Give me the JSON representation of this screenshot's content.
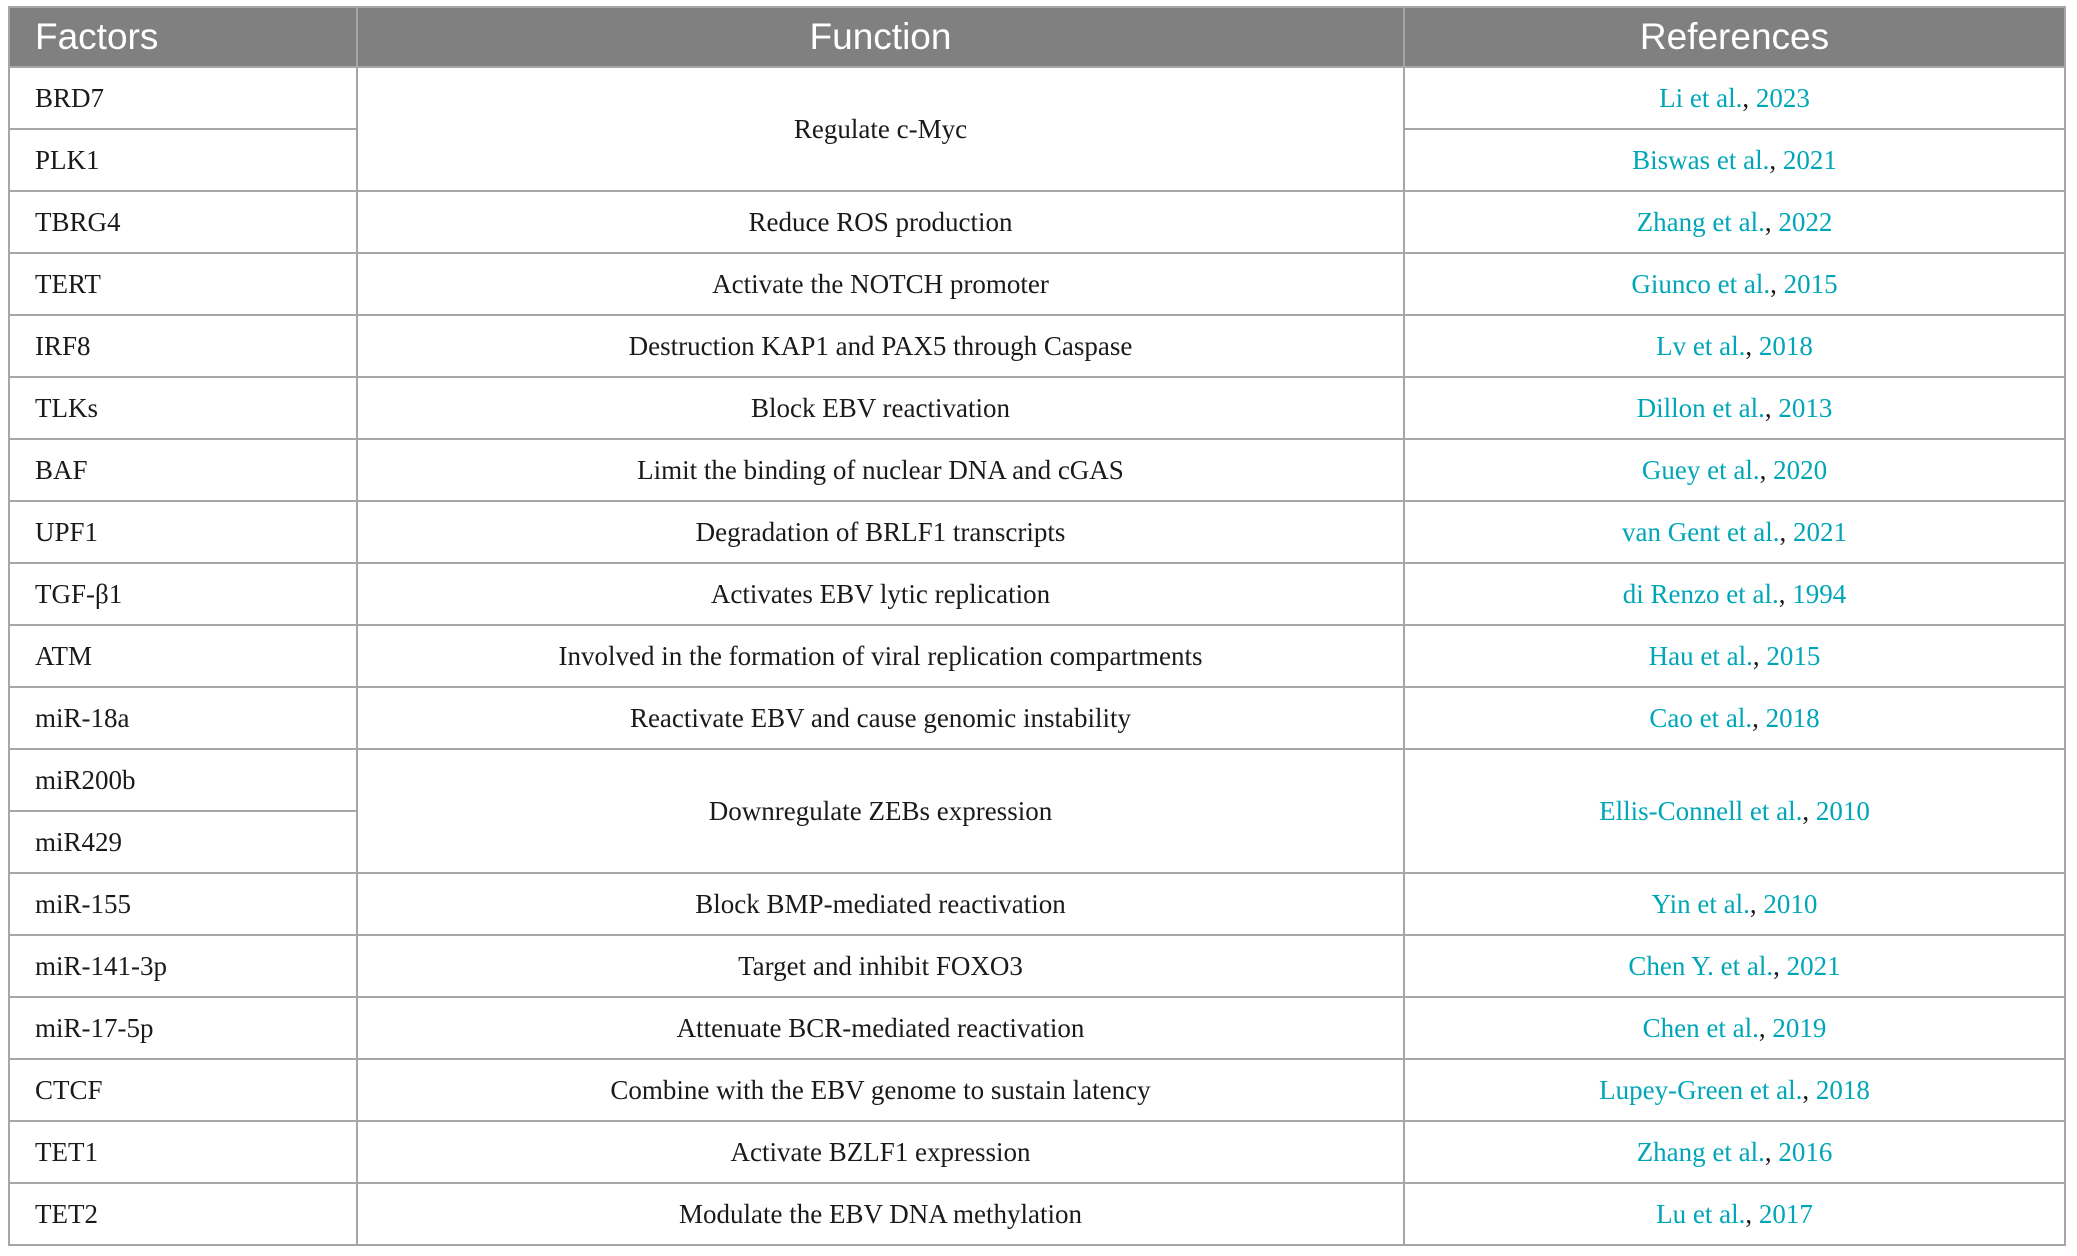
{
  "headers": {
    "factors": "Factors",
    "function": "Function",
    "references": "References"
  },
  "rows": [
    {
      "factor": "BRD7",
      "function": "Regulate c-Myc",
      "reference": {
        "author": "Li et al.",
        "year": "2023"
      }
    },
    {
      "factor": "PLK1",
      "reference": {
        "author": "Biswas et al.",
        "year": "2021"
      }
    },
    {
      "factor": "TBRG4",
      "function": "Reduce ROS production",
      "reference": {
        "author": "Zhang et al.",
        "year": "2022"
      }
    },
    {
      "factor": "TERT",
      "function": "Activate the NOTCH promoter",
      "reference": {
        "author": "Giunco et al.",
        "year": "2015"
      }
    },
    {
      "factor": "IRF8",
      "function": "Destruction KAP1 and PAX5 through Caspase",
      "reference": {
        "author": "Lv et al.",
        "year": "2018"
      }
    },
    {
      "factor": "TLKs",
      "function": "Block EBV reactivation",
      "reference": {
        "author": "Dillon et al.",
        "year": "2013"
      }
    },
    {
      "factor": "BAF",
      "function": "Limit the binding of nuclear DNA and cGAS",
      "reference": {
        "author": "Guey et al.",
        "year": "2020"
      }
    },
    {
      "factor": "UPF1",
      "function": "Degradation of BRLF1 transcripts",
      "reference": {
        "author": "van Gent et al.",
        "year": "2021"
      }
    },
    {
      "factor": "TGF-β1",
      "function": "Activates EBV lytic replication",
      "reference": {
        "author": "di Renzo et al.",
        "year": "1994"
      }
    },
    {
      "factor": "ATM",
      "function": "Involved in the formation of viral replication compartments",
      "reference": {
        "author": "Hau et al.",
        "year": "2015"
      }
    },
    {
      "factor": "miR-18a",
      "function": "Reactivate EBV and cause genomic instability",
      "reference": {
        "author": "Cao et al.",
        "year": "2018"
      }
    },
    {
      "factor": "miR200b",
      "function": "Downregulate ZEBs expression",
      "reference": {
        "author": "Ellis-Connell et al.",
        "year": "2010"
      }
    },
    {
      "factor": "miR429"
    },
    {
      "factor": "miR-155",
      "function": "Block BMP-mediated reactivation",
      "reference": {
        "author": "Yin et al.",
        "year": "2010"
      }
    },
    {
      "factor": "miR-141-3p",
      "function": "Target and inhibit FOXO3",
      "reference": {
        "author": "Chen Y. et al.",
        "year": "2021"
      }
    },
    {
      "factor": "miR-17-5p",
      "function": "Attenuate BCR-mediated reactivation",
      "reference": {
        "author": "Chen et al.",
        "year": "2019"
      }
    },
    {
      "factor": "CTCF",
      "function": "Combine with the EBV genome to sustain latency",
      "reference": {
        "author": "Lupey-Green et al.",
        "year": "2018"
      }
    },
    {
      "factor": "TET1",
      "function": "Activate BZLF1 expression",
      "reference": {
        "author": "Zhang et al.",
        "year": "2016"
      }
    },
    {
      "factor": "TET2",
      "function": "Modulate the EBV DNA methylation",
      "reference": {
        "author": "Lu et al.",
        "year": "2017"
      }
    }
  ],
  "colors": {
    "header_background": "#808080",
    "header_text": "#ffffff",
    "border": "#a6a6a6",
    "reference_link": "#00a6b8",
    "body_text": "#1a1a1a"
  }
}
